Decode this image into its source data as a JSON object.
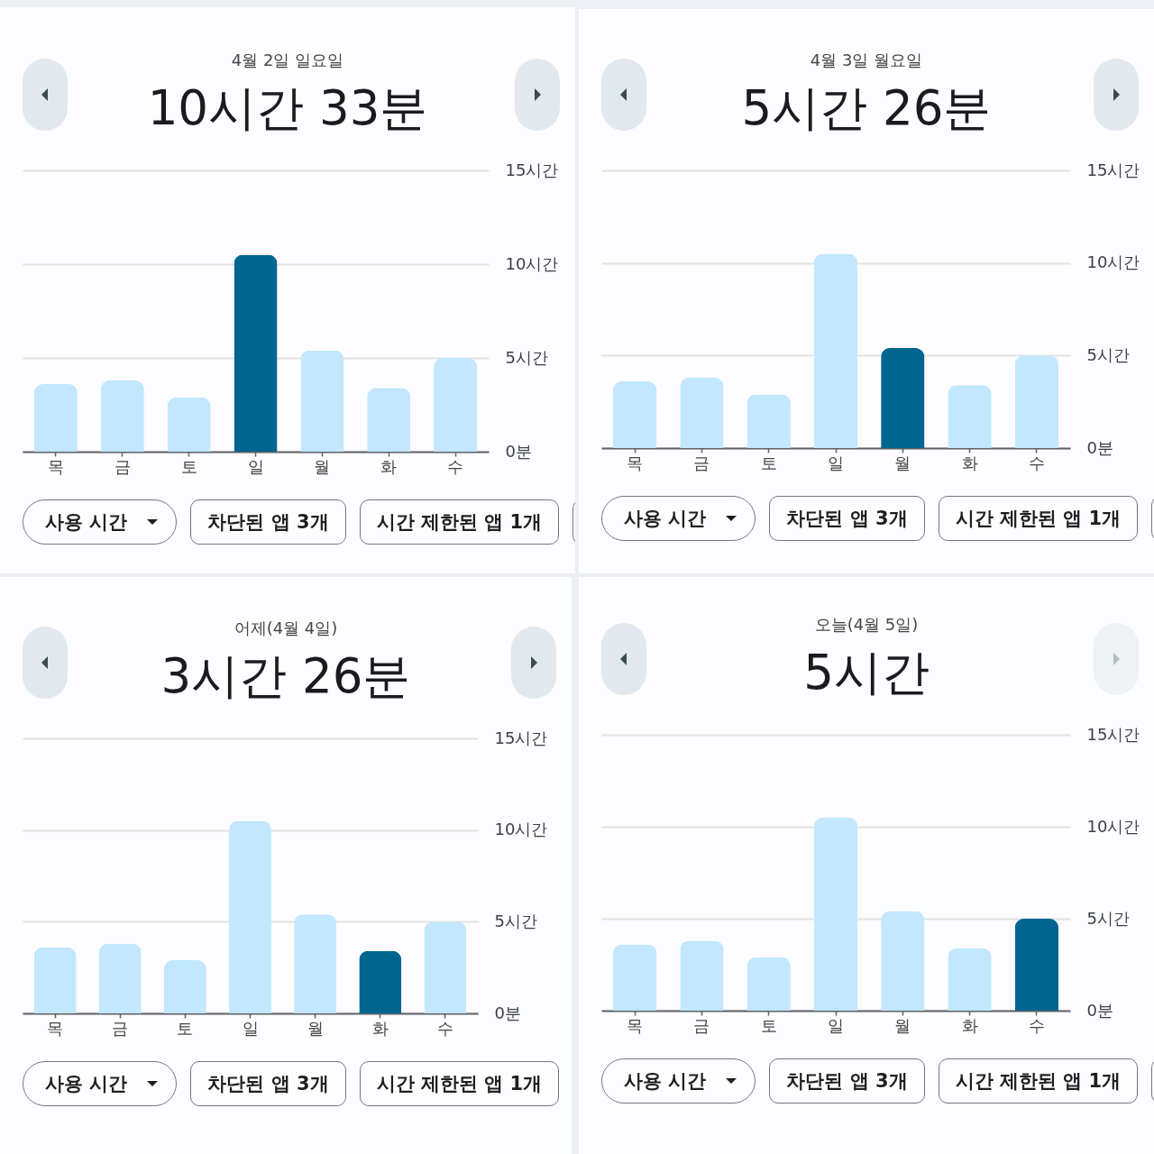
{
  "chart_data": [
    {
      "type": "bar",
      "title": "4월 2일 일요일",
      "subtitle": "10시간 33분",
      "categories": [
        "목",
        "금",
        "토",
        "일",
        "월",
        "화",
        "수"
      ],
      "values": [
        3.6,
        3.8,
        2.9,
        10.5,
        5.4,
        3.4,
        5.0
      ],
      "colors": [
        "#c2e7ff",
        "#c2e7ff",
        "#c2e7ff",
        "#00658f",
        "#c2e7ff",
        "#c2e7ff",
        "#c2e7ff"
      ],
      "ylim": [
        0,
        15
      ],
      "yticks": [
        {
          "value": 0,
          "label": "0분"
        },
        {
          "value": 5,
          "label": "5시간"
        },
        {
          "value": 10,
          "label": "10시간"
        },
        {
          "value": 15,
          "label": "15시간"
        }
      ],
      "grid": "y",
      "annotations": [
        "사용 시간",
        "차단된 앱 3개",
        "시간 제한된 앱 1개"
      ]
    },
    {
      "type": "bar",
      "title": "4월 3일 월요일",
      "subtitle": "5시간 26분",
      "categories": [
        "목",
        "금",
        "토",
        "일",
        "월",
        "화",
        "수"
      ],
      "values": [
        3.6,
        3.8,
        2.9,
        10.5,
        5.4,
        3.4,
        5.0
      ],
      "colors": [
        "#c2e7ff",
        "#c2e7ff",
        "#c2e7ff",
        "#c2e7ff",
        "#00658f",
        "#c2e7ff",
        "#c2e7ff"
      ],
      "ylim": [
        0,
        15
      ],
      "yticks": [
        {
          "value": 0,
          "label": "0분"
        },
        {
          "value": 5,
          "label": "5시간"
        },
        {
          "value": 10,
          "label": "10시간"
        },
        {
          "value": 15,
          "label": "15시간"
        }
      ],
      "grid": "y",
      "annotations": [
        "사용 시간",
        "차단된 앱 3개",
        "시간 제한된 앱 1개"
      ]
    },
    {
      "type": "bar",
      "title": "어제(4월 4일)",
      "subtitle": "3시간 26분",
      "categories": [
        "목",
        "금",
        "토",
        "일",
        "월",
        "화",
        "수"
      ],
      "values": [
        3.6,
        3.8,
        2.9,
        10.5,
        5.4,
        3.4,
        5.0
      ],
      "colors": [
        "#c2e7ff",
        "#c2e7ff",
        "#c2e7ff",
        "#c2e7ff",
        "#c2e7ff",
        "#00658f",
        "#c2e7ff"
      ],
      "ylim": [
        0,
        15
      ],
      "yticks": [
        {
          "value": 0,
          "label": "0분"
        },
        {
          "value": 5,
          "label": "5시간"
        },
        {
          "value": 10,
          "label": "10시간"
        },
        {
          "value": 15,
          "label": "15시간"
        }
      ],
      "grid": "y",
      "annotations": [
        "사용 시간",
        "차단된 앱 3개",
        "시간 제한된 앱 1개"
      ]
    },
    {
      "type": "bar",
      "title": "오늘(4월 5일)",
      "subtitle": "5시간",
      "categories": [
        "목",
        "금",
        "토",
        "일",
        "월",
        "화",
        "수"
      ],
      "values": [
        3.6,
        3.8,
        2.9,
        10.5,
        5.4,
        3.4,
        5.0
      ],
      "colors": [
        "#c2e7ff",
        "#c2e7ff",
        "#c2e7ff",
        "#c2e7ff",
        "#c2e7ff",
        "#c2e7ff",
        "#00658f"
      ],
      "ylim": [
        0,
        15
      ],
      "yticks": [
        {
          "value": 0,
          "label": "0분"
        },
        {
          "value": 5,
          "label": "5시간"
        },
        {
          "value": 10,
          "label": "10시간"
        },
        {
          "value": 15,
          "label": "15시간"
        }
      ],
      "grid": "y",
      "annotations": [
        "사용 시간",
        "차단된 앱 3개",
        "시간 제한된 앱 1개"
      ]
    }
  ]
}
